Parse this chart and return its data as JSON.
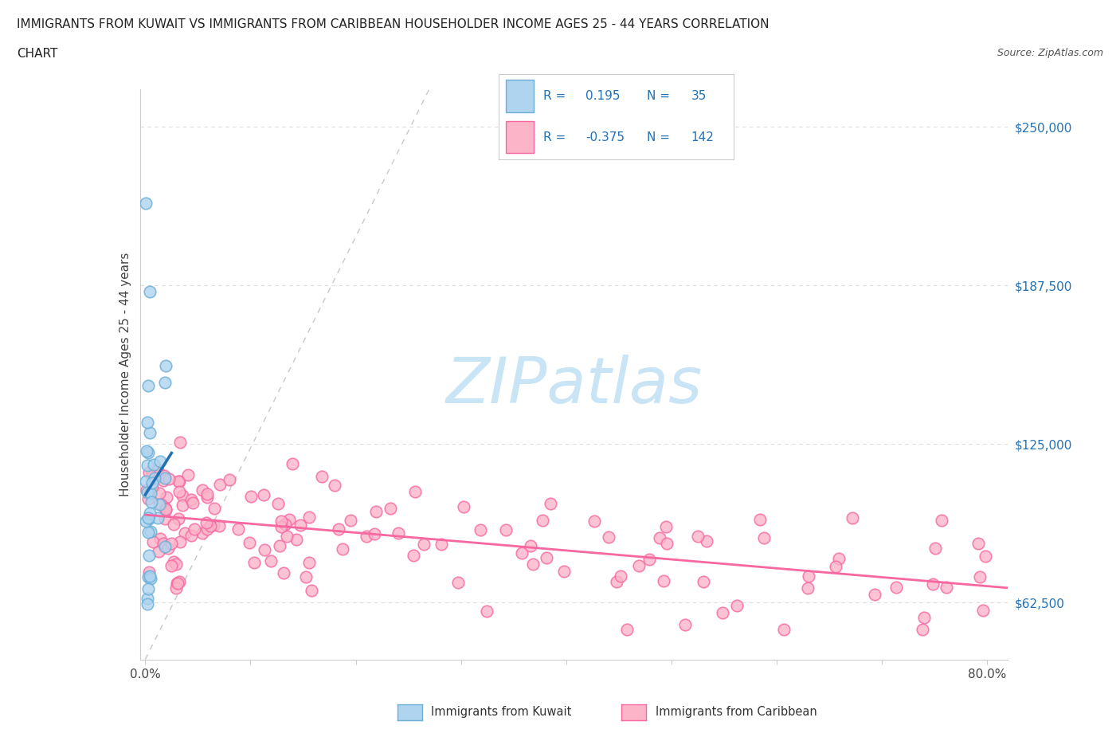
{
  "title_line1": "IMMIGRANTS FROM KUWAIT VS IMMIGRANTS FROM CARIBBEAN HOUSEHOLDER INCOME AGES 25 - 44 YEARS CORRELATION",
  "title_line2": "CHART",
  "source_text": "Source: ZipAtlas.com",
  "ylabel": "Householder Income Ages 25 - 44 years",
  "kuwait_R": 0.195,
  "kuwait_N": 35,
  "caribbean_R": -0.375,
  "caribbean_N": 142,
  "kuwait_fill_color": "#aed4ef",
  "kuwait_edge_color": "#6baed6",
  "caribbean_fill_color": "#fbb4c8",
  "caribbean_edge_color": "#f768a1",
  "trendline_kuwait_color": "#2171b5",
  "trendline_caribbean_color": "#f768a1",
  "right_tick_color": "#2171b5",
  "background_color": "#ffffff",
  "watermark_text": "ZIPatlas",
  "watermark_color": "#c8e4f5",
  "diag_line_color": "#aaaaaa",
  "grid_color": "#dddddd",
  "yticks": [
    62500,
    125000,
    187500,
    250000
  ],
  "ytick_labels": [
    "$62,500",
    "$125,000",
    "$187,500",
    "$250,000"
  ],
  "ylim": [
    40000,
    265000
  ],
  "xlim": [
    -0.005,
    0.82
  ],
  "legend_label_kuwait": "Immigrants from Kuwait",
  "legend_label_caribbean": "Immigrants from Caribbean"
}
